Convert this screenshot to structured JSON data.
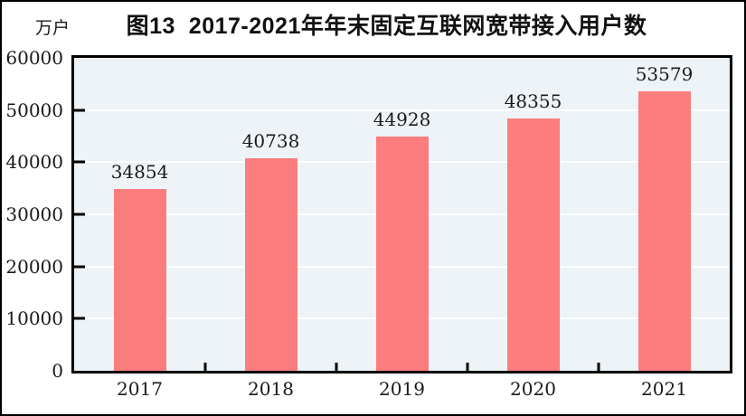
{
  "window": {
    "background": "#FFFFFF",
    "border_color": "#000000"
  },
  "chart_data": {
    "type": "bar",
    "title": "图13  2017-2021年年末固定互联网宽带接入用户数",
    "unit_label": "万户",
    "categories": [
      "2017",
      "2018",
      "2019",
      "2020",
      "2021"
    ],
    "values": [
      34854,
      40738,
      44928,
      48355,
      53579
    ],
    "ylim": [
      0,
      60000
    ],
    "yticks": [
      0,
      10000,
      20000,
      30000,
      40000,
      50000,
      60000
    ],
    "xlabel": "",
    "ylabel": "万户",
    "grid": true,
    "grid_orientation": "horizontal",
    "legend": "none",
    "value_labels": true,
    "colors": {
      "bar": "#FC7D7D",
      "plot_background": "#EDF3F7",
      "gridline": "#FFFFFF",
      "axis": "#000000",
      "text": "#1A1A1A"
    }
  }
}
